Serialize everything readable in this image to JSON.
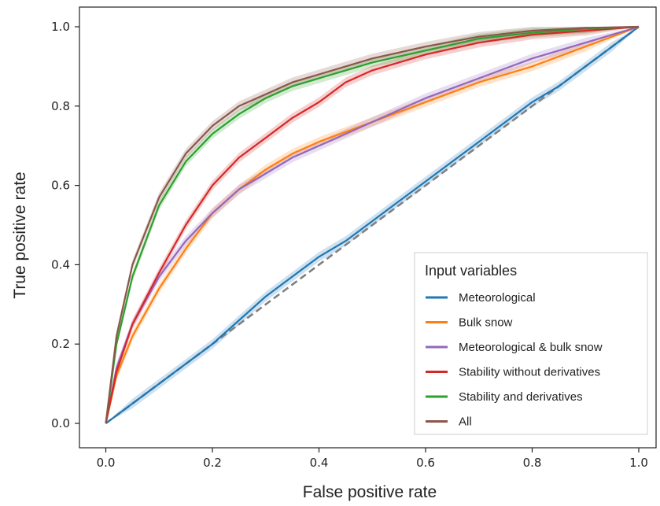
{
  "chart_data": {
    "type": "line",
    "xlabel": "False positive rate",
    "ylabel": "True positive rate",
    "xlim": [
      -0.05,
      1.05
    ],
    "ylim": [
      -0.05,
      1.05
    ],
    "xticks": [
      "0.0",
      "0.2",
      "0.4",
      "0.6",
      "0.8",
      "1.0"
    ],
    "yticks": [
      "0.0",
      "0.2",
      "0.4",
      "0.6",
      "0.8",
      "1.0"
    ],
    "grid": false,
    "legend": {
      "title": "Input variables",
      "placement": "lower-right"
    },
    "reference_line": {
      "style": "dashed",
      "color": "#808080",
      "x": [
        0,
        1
      ],
      "y": [
        0,
        1
      ]
    },
    "series": [
      {
        "name": "Meteorological",
        "color": "#1f77b4",
        "x": [
          0,
          0.05,
          0.1,
          0.15,
          0.2,
          0.25,
          0.3,
          0.35,
          0.4,
          0.45,
          0.5,
          0.55,
          0.6,
          0.65,
          0.7,
          0.75,
          0.8,
          0.85,
          0.9,
          0.95,
          1.0
        ],
        "y": [
          0,
          0.05,
          0.1,
          0.15,
          0.2,
          0.26,
          0.32,
          0.37,
          0.42,
          0.46,
          0.51,
          0.56,
          0.61,
          0.66,
          0.71,
          0.76,
          0.81,
          0.85,
          0.9,
          0.95,
          1.0
        ]
      },
      {
        "name": "Bulk snow",
        "color": "#ff7f0e",
        "x": [
          0,
          0.02,
          0.05,
          0.1,
          0.15,
          0.2,
          0.25,
          0.3,
          0.35,
          0.4,
          0.5,
          0.6,
          0.7,
          0.8,
          0.9,
          1.0
        ],
        "y": [
          0,
          0.12,
          0.22,
          0.34,
          0.44,
          0.53,
          0.59,
          0.64,
          0.68,
          0.71,
          0.76,
          0.81,
          0.86,
          0.9,
          0.95,
          1.0
        ]
      },
      {
        "name": "Meteorological & bulk snow",
        "color": "#9467bd",
        "x": [
          0,
          0.02,
          0.05,
          0.1,
          0.15,
          0.2,
          0.25,
          0.3,
          0.35,
          0.4,
          0.5,
          0.6,
          0.7,
          0.8,
          0.9,
          1.0
        ],
        "y": [
          0,
          0.14,
          0.25,
          0.37,
          0.46,
          0.53,
          0.59,
          0.63,
          0.67,
          0.7,
          0.76,
          0.82,
          0.87,
          0.92,
          0.96,
          1.0
        ]
      },
      {
        "name": "Stability without derivatives",
        "color": "#d62728",
        "x": [
          0,
          0.02,
          0.05,
          0.1,
          0.15,
          0.2,
          0.25,
          0.3,
          0.35,
          0.4,
          0.45,
          0.5,
          0.6,
          0.7,
          0.8,
          0.9,
          1.0
        ],
        "y": [
          0,
          0.13,
          0.25,
          0.38,
          0.5,
          0.6,
          0.67,
          0.72,
          0.77,
          0.81,
          0.86,
          0.89,
          0.93,
          0.96,
          0.98,
          0.99,
          1.0
        ]
      },
      {
        "name": "Stability and derivatives",
        "color": "#2ca02c",
        "x": [
          0,
          0.02,
          0.05,
          0.1,
          0.15,
          0.2,
          0.25,
          0.3,
          0.35,
          0.4,
          0.5,
          0.6,
          0.7,
          0.8,
          0.9,
          1.0
        ],
        "y": [
          0,
          0.2,
          0.37,
          0.55,
          0.66,
          0.73,
          0.78,
          0.82,
          0.85,
          0.87,
          0.91,
          0.94,
          0.97,
          0.985,
          0.995,
          1.0
        ]
      },
      {
        "name": "All",
        "color": "#8c564b",
        "x": [
          0,
          0.02,
          0.05,
          0.1,
          0.15,
          0.2,
          0.25,
          0.3,
          0.35,
          0.4,
          0.5,
          0.6,
          0.7,
          0.8,
          0.9,
          1.0
        ],
        "y": [
          0,
          0.22,
          0.4,
          0.57,
          0.68,
          0.75,
          0.8,
          0.83,
          0.86,
          0.88,
          0.92,
          0.95,
          0.975,
          0.99,
          0.997,
          1.0
        ]
      }
    ]
  }
}
